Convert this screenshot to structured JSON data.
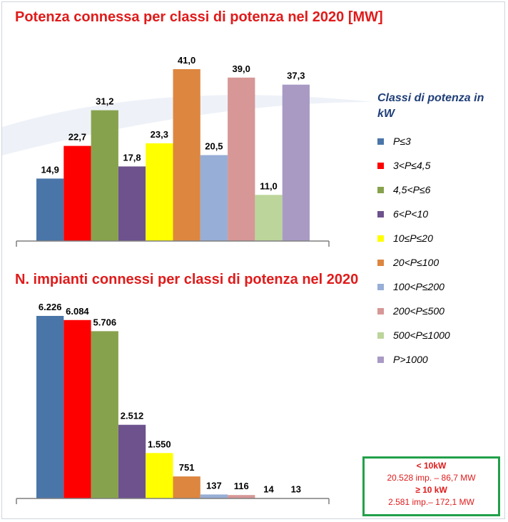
{
  "colors": {
    "title": "#e01b1b",
    "legend_title": "#1f3e78",
    "summary_border": "#21a04a",
    "axis": "#7f7f7f",
    "series": [
      "#4a75a8",
      "#ff0000",
      "#87a24c",
      "#6d528e",
      "#ffff00",
      "#dd8640",
      "#97aed6",
      "#d69796",
      "#bcd59b",
      "#a99ac4"
    ]
  },
  "legend": {
    "title": "Classi di potenza in kW",
    "items": [
      "P≤3",
      "3<P≤4,5",
      "4,5<P≤6",
      "6<P<10",
      "10≤P≤20",
      "20<P≤100",
      "100<P≤200",
      "200<P≤500",
      "500<P≤1000",
      "P>1000"
    ]
  },
  "chart_data": [
    {
      "type": "bar",
      "title": "Potenza connessa per classi di potenza nel 2020 [MW]",
      "categories": [
        "P≤3",
        "3<P≤4,5",
        "4,5<P≤6",
        "6<P<10",
        "10≤P≤20",
        "20<P≤100",
        "100<P≤200",
        "200<P≤500",
        "500<P≤1000",
        "P>1000"
      ],
      "values": [
        14.9,
        22.7,
        31.2,
        17.8,
        23.3,
        41.0,
        20.5,
        39.0,
        11.0,
        37.3
      ],
      "value_labels": [
        "14,9",
        "22,7",
        "31,2",
        "17,8",
        "23,3",
        "41,0",
        "20,5",
        "39,0",
        "11,0",
        "37,3"
      ],
      "ylim": [
        0,
        41
      ],
      "grid": false,
      "legend": "right"
    },
    {
      "type": "bar",
      "title": "N. impianti connessi per classi di potenza nel 2020",
      "categories": [
        "P≤3",
        "3<P≤4,5",
        "4,5<P≤6",
        "6<P<10",
        "10≤P≤20",
        "20<P≤100",
        "100<P≤200",
        "200<P≤500",
        "500<P≤1000",
        "P>1000"
      ],
      "values": [
        6226,
        6084,
        5706,
        2512,
        1550,
        751,
        137,
        116,
        14,
        13
      ],
      "value_labels": [
        "6.226",
        "6.084",
        "5.706",
        "2.512",
        "1.550",
        "751",
        "137",
        "116",
        "14",
        "13"
      ],
      "ylim": [
        0,
        6226
      ],
      "grid": false,
      "legend": "right"
    }
  ],
  "summary": {
    "head1": "< 10kW",
    "line1": "20.528 imp. – 86,7 MW",
    "head2": "≥ 10 kW",
    "line2": "2.581 imp.– 172,1 MW"
  }
}
